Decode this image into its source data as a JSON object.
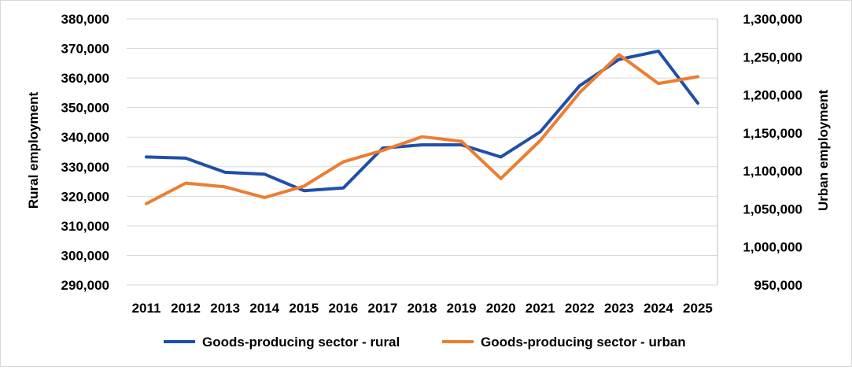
{
  "chart_data": {
    "type": "line",
    "title": "",
    "x": [
      "2011",
      "2012",
      "2013",
      "2014",
      "2015",
      "2016",
      "2017",
      "2018",
      "2019",
      "2020",
      "2021",
      "2022",
      "2023",
      "2024",
      "2025"
    ],
    "left_axis": {
      "label": "Rural employment",
      "ylim": [
        290000,
        380000
      ],
      "ticks": [
        "290,000",
        "300,000",
        "310,000",
        "320,000",
        "330,000",
        "340,000",
        "350,000",
        "360,000",
        "370,000",
        "380,000"
      ]
    },
    "right_axis": {
      "label": "Urban employment",
      "ylim": [
        950000,
        1300000
      ],
      "ticks": [
        "950,000",
        "1,000,000",
        "1,050,000",
        "1,100,000",
        "1,150,000",
        "1,200,000",
        "1,250,000",
        "1,300,000"
      ]
    },
    "series": [
      {
        "name": "Goods-producing sector - rural",
        "axis": "left",
        "color": "#1f4fa8",
        "values": [
          333300,
          332900,
          328100,
          327500,
          321900,
          322800,
          336300,
          337400,
          337400,
          333300,
          341800,
          357400,
          366300,
          369100,
          351500
        ]
      },
      {
        "name": "Goods-producing sector - urban",
        "axis": "right",
        "color": "#ed7d31",
        "values": [
          1057000,
          1084000,
          1079000,
          1065000,
          1080000,
          1112000,
          1127000,
          1145000,
          1139000,
          1090000,
          1140000,
          1203000,
          1253000,
          1215000,
          1224000
        ]
      }
    ],
    "grid": true,
    "legend_position": "bottom"
  }
}
